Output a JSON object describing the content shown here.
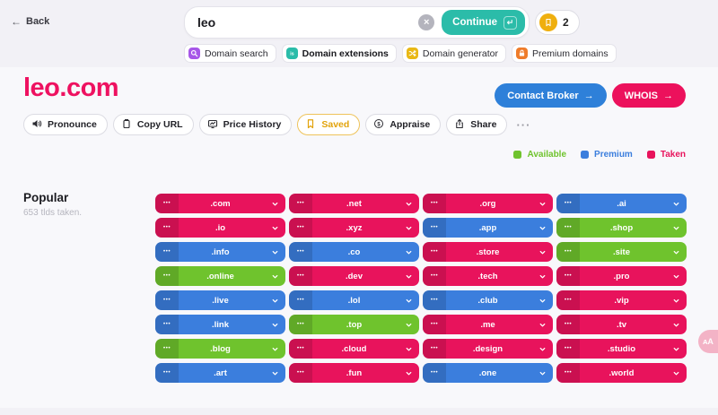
{
  "icons": {
    "back_arrow": "←",
    "clear": "×",
    "return": "↵",
    "arrow_right": "→",
    "pill_dots": "•••",
    "more": "···",
    "translate": "ᴀA"
  },
  "topbar": {
    "back_label": "Back",
    "search_value": "leo",
    "continue_label": "Continue",
    "saved_count": "2"
  },
  "tabs": [
    {
      "label": "Domain search",
      "icon": "magnifier",
      "icon_bg": "#a757e8",
      "active": false
    },
    {
      "label": "Domain extensions",
      "icon": "extensions",
      "icon_bg": "#2bbca9",
      "active": true
    },
    {
      "label": "Domain generator",
      "icon": "shuffle",
      "icon_bg": "#e9b815",
      "active": false
    },
    {
      "label": "Premium domains",
      "icon": "lock",
      "icon_bg": "#ef7c2a",
      "active": false
    }
  ],
  "header": {
    "domain": "leo.com",
    "brand_color": "#ee1160",
    "contact_broker_label": "Contact Broker",
    "whois_label": "WHOIS"
  },
  "actions": [
    {
      "label": "Pronounce",
      "icon": "speaker",
      "style": "default"
    },
    {
      "label": "Copy URL",
      "icon": "clipboard",
      "style": "default"
    },
    {
      "label": "Price History",
      "icon": "chart",
      "style": "default"
    },
    {
      "label": "Saved",
      "icon": "bookmark",
      "style": "saved"
    },
    {
      "label": "Appraise",
      "icon": "dollar",
      "style": "default"
    },
    {
      "label": "Share",
      "icon": "share",
      "style": "default"
    }
  ],
  "legend": [
    {
      "label": "Available",
      "color": "#6fc32d"
    },
    {
      "label": "Premium",
      "color": "#3b7edd"
    },
    {
      "label": "Taken",
      "color": "#e8135c"
    }
  ],
  "status_colors": {
    "available": "#6fc32d",
    "premium": "#3b7edd",
    "taken": "#e8135c"
  },
  "section": {
    "title": "Popular",
    "subtitle": "653 tlds taken."
  },
  "tlds": [
    {
      "name": ".com",
      "status": "taken"
    },
    {
      "name": ".net",
      "status": "taken"
    },
    {
      "name": ".org",
      "status": "taken"
    },
    {
      "name": ".ai",
      "status": "premium"
    },
    {
      "name": ".io",
      "status": "taken"
    },
    {
      "name": ".xyz",
      "status": "taken"
    },
    {
      "name": ".app",
      "status": "premium"
    },
    {
      "name": ".shop",
      "status": "available"
    },
    {
      "name": ".info",
      "status": "premium"
    },
    {
      "name": ".co",
      "status": "premium"
    },
    {
      "name": ".store",
      "status": "taken"
    },
    {
      "name": ".site",
      "status": "available"
    },
    {
      "name": ".online",
      "status": "available"
    },
    {
      "name": ".dev",
      "status": "taken"
    },
    {
      "name": ".tech",
      "status": "taken"
    },
    {
      "name": ".pro",
      "status": "taken"
    },
    {
      "name": ".live",
      "status": "premium"
    },
    {
      "name": ".lol",
      "status": "premium"
    },
    {
      "name": ".club",
      "status": "premium"
    },
    {
      "name": ".vip",
      "status": "taken"
    },
    {
      "name": ".link",
      "status": "premium"
    },
    {
      "name": ".top",
      "status": "available"
    },
    {
      "name": ".me",
      "status": "taken"
    },
    {
      "name": ".tv",
      "status": "taken"
    },
    {
      "name": ".blog",
      "status": "available"
    },
    {
      "name": ".cloud",
      "status": "taken"
    },
    {
      "name": ".design",
      "status": "taken"
    },
    {
      "name": ".studio",
      "status": "taken"
    },
    {
      "name": ".art",
      "status": "premium"
    },
    {
      "name": ".fun",
      "status": "taken"
    },
    {
      "name": ".one",
      "status": "premium"
    },
    {
      "name": ".world",
      "status": "taken"
    }
  ]
}
